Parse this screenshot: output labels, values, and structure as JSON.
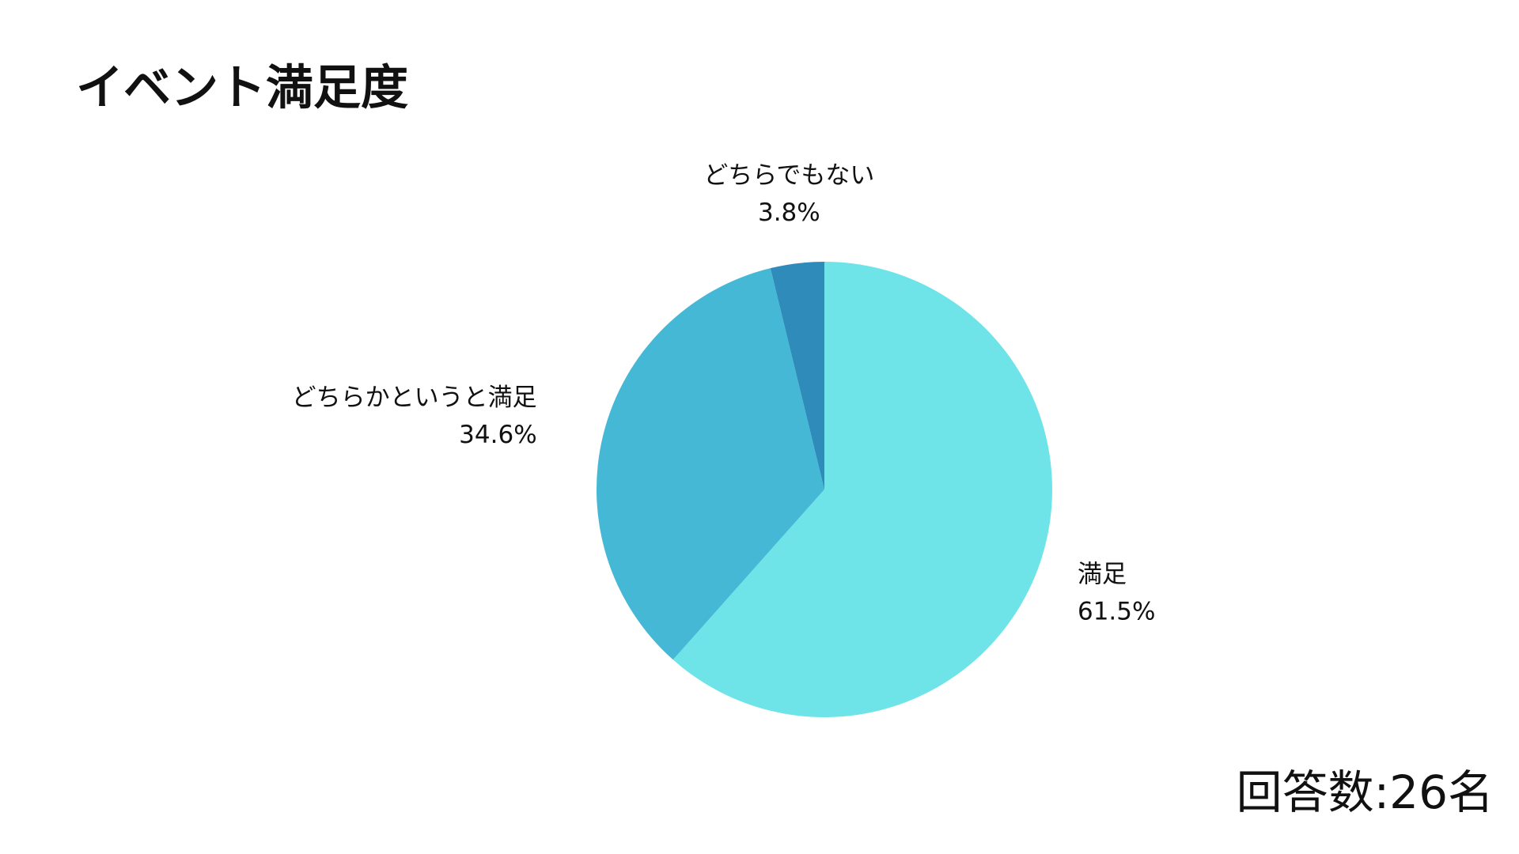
{
  "chart_data": {
    "type": "pie",
    "title": "イベント満足度",
    "categories": [
      "満足",
      "どちらかというと満足",
      "どちらでもない"
    ],
    "values": [
      61.5,
      34.6,
      3.8
    ],
    "value_labels": [
      "61.5%",
      "34.6%",
      "3.8%"
    ],
    "colors": [
      "#6ee4e8",
      "#45b8d6",
      "#2e8bba"
    ],
    "note": "回答数:26名"
  }
}
